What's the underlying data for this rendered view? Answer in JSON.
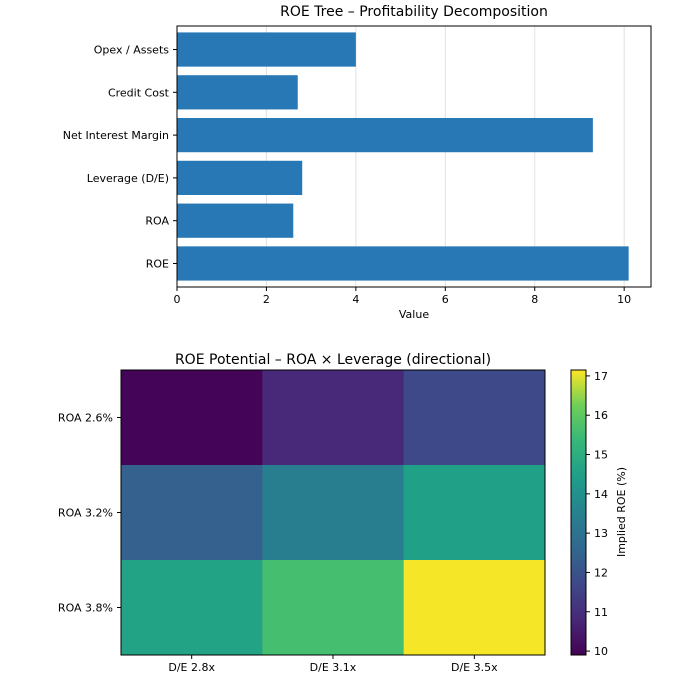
{
  "chart_data": [
    {
      "type": "bar",
      "orientation": "horizontal",
      "title": "ROE Tree – Profitability Decomposition",
      "xlabel": "Value",
      "ylabel": "",
      "categories": [
        "ROE",
        "ROA",
        "Leverage (D/E)",
        "Net Interest Margin",
        "Credit Cost",
        "Opex / Assets"
      ],
      "values": [
        10.1,
        2.6,
        2.8,
        9.3,
        2.7,
        4.0
      ],
      "xlim": [
        0,
        10.6
      ],
      "xticks": [
        "0",
        "2",
        "4",
        "6",
        "8",
        "10"
      ],
      "grid": "vertical",
      "bar_color": "#2878b5"
    },
    {
      "type": "heatmap",
      "title": "ROE Potential – ROA × Leverage (directional)",
      "x_categories": [
        "D/E 2.8x",
        "D/E 3.1x",
        "D/E 3.5x"
      ],
      "y_categories": [
        "ROA 2.6%",
        "ROA 3.2%",
        "ROA 3.8%"
      ],
      "values": [
        [
          10.0,
          10.8,
          11.7
        ],
        [
          12.4,
          13.4,
          14.5
        ],
        [
          14.6,
          15.6,
          17.1
        ]
      ],
      "colormap": "viridis",
      "colorbar": {
        "label": "Implied ROE (%)",
        "min": 9.9,
        "max": 17.15,
        "ticks": [
          "10",
          "11",
          "12",
          "13",
          "14",
          "15",
          "16",
          "17"
        ]
      }
    }
  ]
}
